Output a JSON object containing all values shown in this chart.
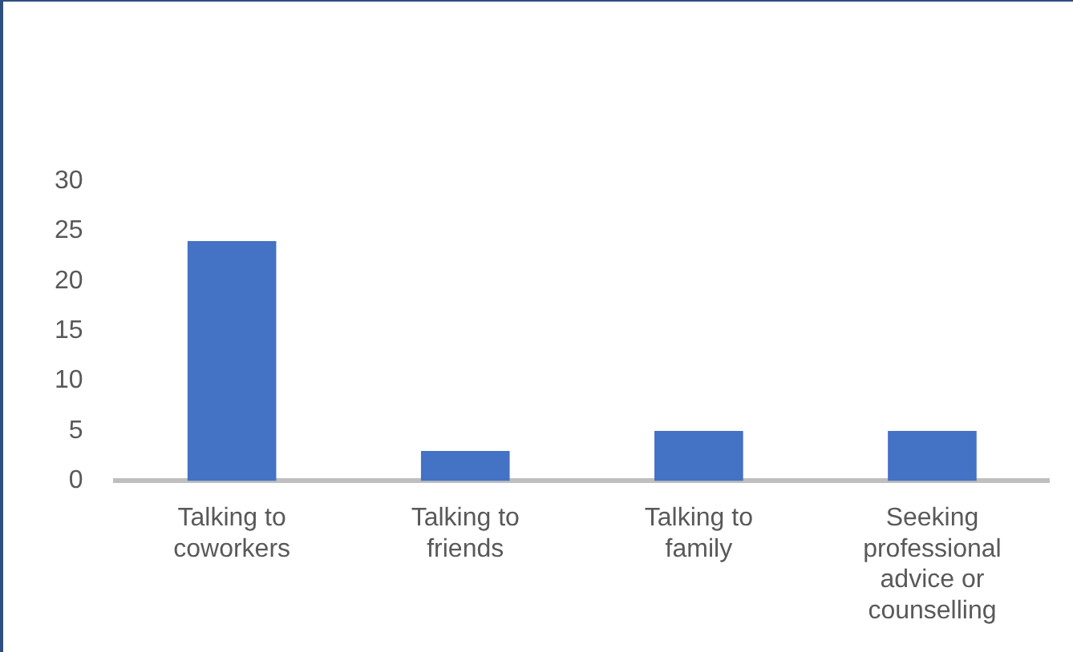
{
  "chart_data": {
    "type": "bar",
    "categories": [
      "Talking to coworkers",
      "Talking to friends",
      "Talking to family",
      "Seeking professional advice or counselling"
    ],
    "values": [
      24,
      3,
      5,
      5
    ],
    "color": "#4472c4",
    "ylim": [
      0,
      30
    ],
    "yticks": [
      0,
      5,
      10,
      15,
      20,
      25,
      30
    ],
    "grid": false,
    "legend": false
  }
}
